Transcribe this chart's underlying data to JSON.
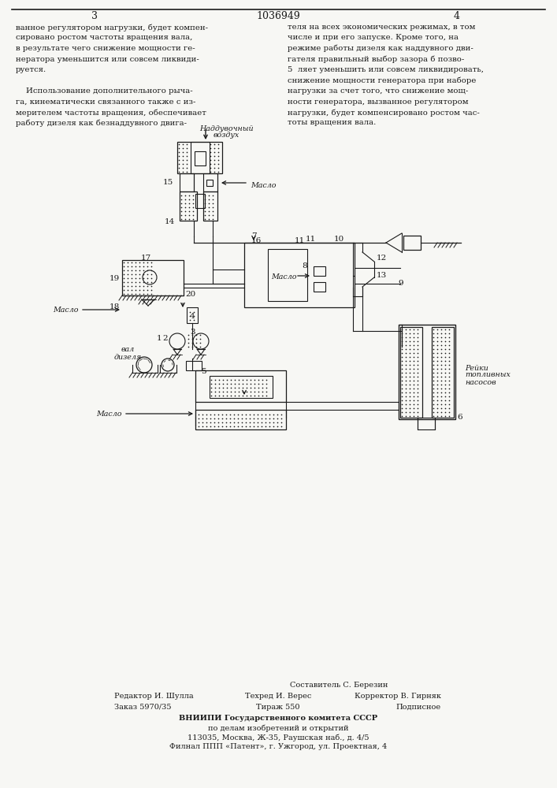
{
  "patent_number": "1036949",
  "page_left": "3",
  "page_right": "4",
  "bg_color": "#f7f7f4",
  "text_color": "#1a1a1a",
  "left_column_text": [
    "ванное регулятором нагрузки, будет компен-",
    "сировано ростом частоты вращения вала,",
    "в результате чего снижение мощности ге-",
    "нератора уменьшится или совсем ликвиди-",
    "руется.",
    "",
    "    Использование дополнительного рыча-",
    "га, кинематически связанного также с из-",
    "мерителем частоты вращения, обеспечивает",
    "работу дизеля как безнаддувного двига-"
  ],
  "right_column_text": [
    "теля на всех экономических режимах, в том",
    "числе и при его запуске. Кроме того, на",
    "режиме работы дизеля как наддувного дви-",
    "гателя правильный выбор зазора б позво-",
    "5  ляет уменьшить или совсем ликвидировать,",
    "снижение мощности генератора при наборе",
    "нагрузки за счет того, что снижение мощ-",
    "ности генератора, вызванное регулятором",
    "нагрузки, будет компенсировано ростом час-",
    "тоты вращения вала."
  ],
  "footer_col1": [
    "Редактор И. Шулла",
    "Заказ 5970/35"
  ],
  "footer_col2": [
    "Составитель С. Березин",
    "Техред И. Верес",
    "Тираж 550"
  ],
  "footer_col3": [
    "Корректор В. Гирняк",
    "Подписное"
  ],
  "footer_vniip": [
    "ВНИИПИ Государственного комитета СССР",
    "по делам изобретений и открытий",
    "113035, Москва, Ж-35, Раушская наб., д. 4/5",
    "Филнал ППП «Патент», г. Ужгород, ул. Проектная, 4"
  ]
}
